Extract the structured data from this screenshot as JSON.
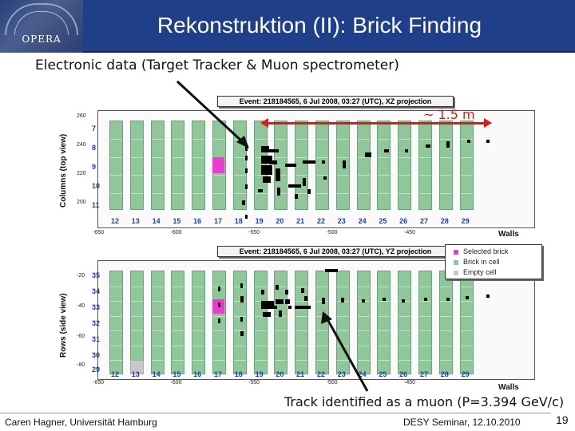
{
  "header": {
    "title": "Rekonstruktion (II): Brick Finding",
    "logo_text": "OPERA"
  },
  "subtitle": "Electronic data (Target Tracker & Muon spectrometer)",
  "top_plot": {
    "title": "Event: 218184565,  6 Jul 2008, 03:27 (UTC), XZ projection",
    "y_axis_label": "Columns (top view)",
    "y_ticks": [
      "260",
      "240",
      "220",
      "200"
    ],
    "column_labels": [
      "7",
      "8",
      "9",
      "10",
      "11"
    ],
    "x_ticks": [
      "-650",
      "-600",
      "-550",
      "-500",
      "-450"
    ],
    "x_axis_label": "Walls",
    "span_label": "~ 1.5 m"
  },
  "bottom_plot": {
    "title": "Event: 218184565,  6 Jul 2008, 03:27 (UTC), YZ projection",
    "y_axis_label": "Rows (side view)",
    "y_ticks": [
      "-20",
      "-40",
      "-60",
      "-80"
    ],
    "row_labels": [
      "35",
      "34",
      "33",
      "32",
      "31",
      "30",
      "29"
    ],
    "x_ticks": [
      "-650",
      "-600",
      "-550",
      "-500",
      "-450"
    ],
    "x_axis_label": "Walls"
  },
  "walls": [
    "12",
    "13",
    "14",
    "15",
    "16",
    "17",
    "18",
    "19",
    "20",
    "21",
    "22",
    "23",
    "24",
    "25",
    "26",
    "27",
    "28",
    "29"
  ],
  "legend": {
    "items": [
      {
        "label": "Selected brick",
        "color": "#e83ed0"
      },
      {
        "label": "Brick in cell",
        "color": "#8fc79a"
      },
      {
        "label": "Empty cell",
        "color": "#c8c8c8"
      }
    ]
  },
  "annotation": "Track identified as a muon (P=3.394 GeV/c)",
  "footer": {
    "left": "Caren Hagner, Universität Hamburg",
    "middle": "DESY Seminar, 12.10.2010",
    "page": "19"
  },
  "colors": {
    "header_bg": "#1f3f8a",
    "brick": "#8fc79a",
    "selected": "#e83ed0",
    "accent_red": "#e01818",
    "label_blue": "#1b3fae"
  }
}
